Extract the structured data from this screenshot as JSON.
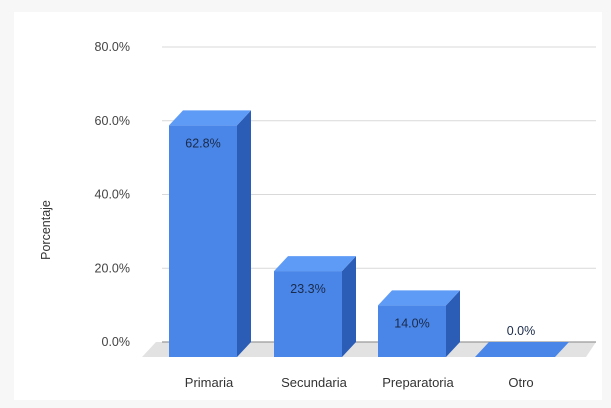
{
  "chart_data": {
    "type": "bar",
    "categories": [
      "Primaria",
      "Secundaria",
      "Preparatoria",
      "Otro"
    ],
    "values": [
      62.8,
      23.3,
      14.0,
      0.0
    ],
    "data_labels": [
      "62.8%",
      "23.3%",
      "14.0%",
      "0.0%"
    ],
    "yticks": [
      "0.0%",
      "20.0%",
      "40.0%",
      "60.0%",
      "80.0%"
    ],
    "ytick_values": [
      0,
      20,
      40,
      60,
      80
    ],
    "ylabel": "Porcentaje",
    "xlabel": "",
    "ylim": [
      0,
      80
    ],
    "grid": true,
    "legend": "none",
    "style": "3d-column",
    "colors": {
      "front": "#4a86e8",
      "top": "#5e9bf6",
      "side": "#2b5cb6",
      "floor": "#e2e2e2",
      "grid": "#d9d9d9"
    }
  }
}
